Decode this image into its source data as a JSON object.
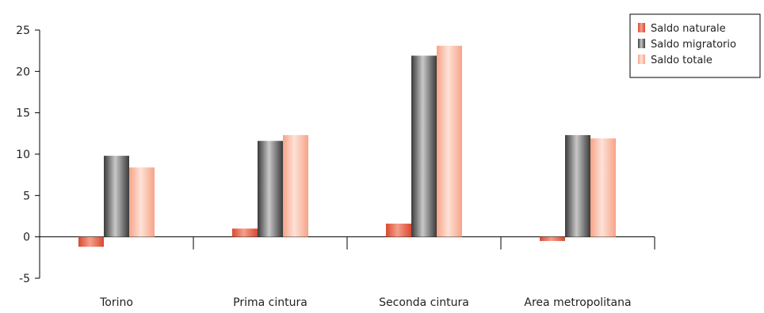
{
  "chart_data": {
    "type": "bar",
    "categories": [
      "Torino",
      "Prima cintura",
      "Seconda cintura",
      "Area metropolitana"
    ],
    "series": [
      {
        "name": "Saldo naturale",
        "values": [
          -1.2,
          1.0,
          1.6,
          -0.5
        ]
      },
      {
        "name": "Saldo migratorio",
        "values": [
          9.8,
          11.6,
          21.9,
          12.3
        ]
      },
      {
        "name": "Saldo totale",
        "values": [
          8.4,
          12.3,
          23.1,
          11.9
        ]
      }
    ],
    "ylim": [
      -5,
      25
    ],
    "yticks": [
      -5,
      0,
      5,
      10,
      15,
      20,
      25
    ],
    "ytick_labels": [
      "-5",
      "0",
      "5",
      "10",
      "15",
      "20",
      "25"
    ],
    "legend_position": "top-right",
    "grid": false,
    "colors": {
      "Saldo naturale": {
        "edge": "#d9482f",
        "mid": "#f5a08b"
      },
      "Saldo migratorio": {
        "edge": "#3a3a3a",
        "mid": "#c8c8c8"
      },
      "Saldo totale": {
        "edge": "#f7a387",
        "mid": "#fde2d8"
      }
    }
  }
}
